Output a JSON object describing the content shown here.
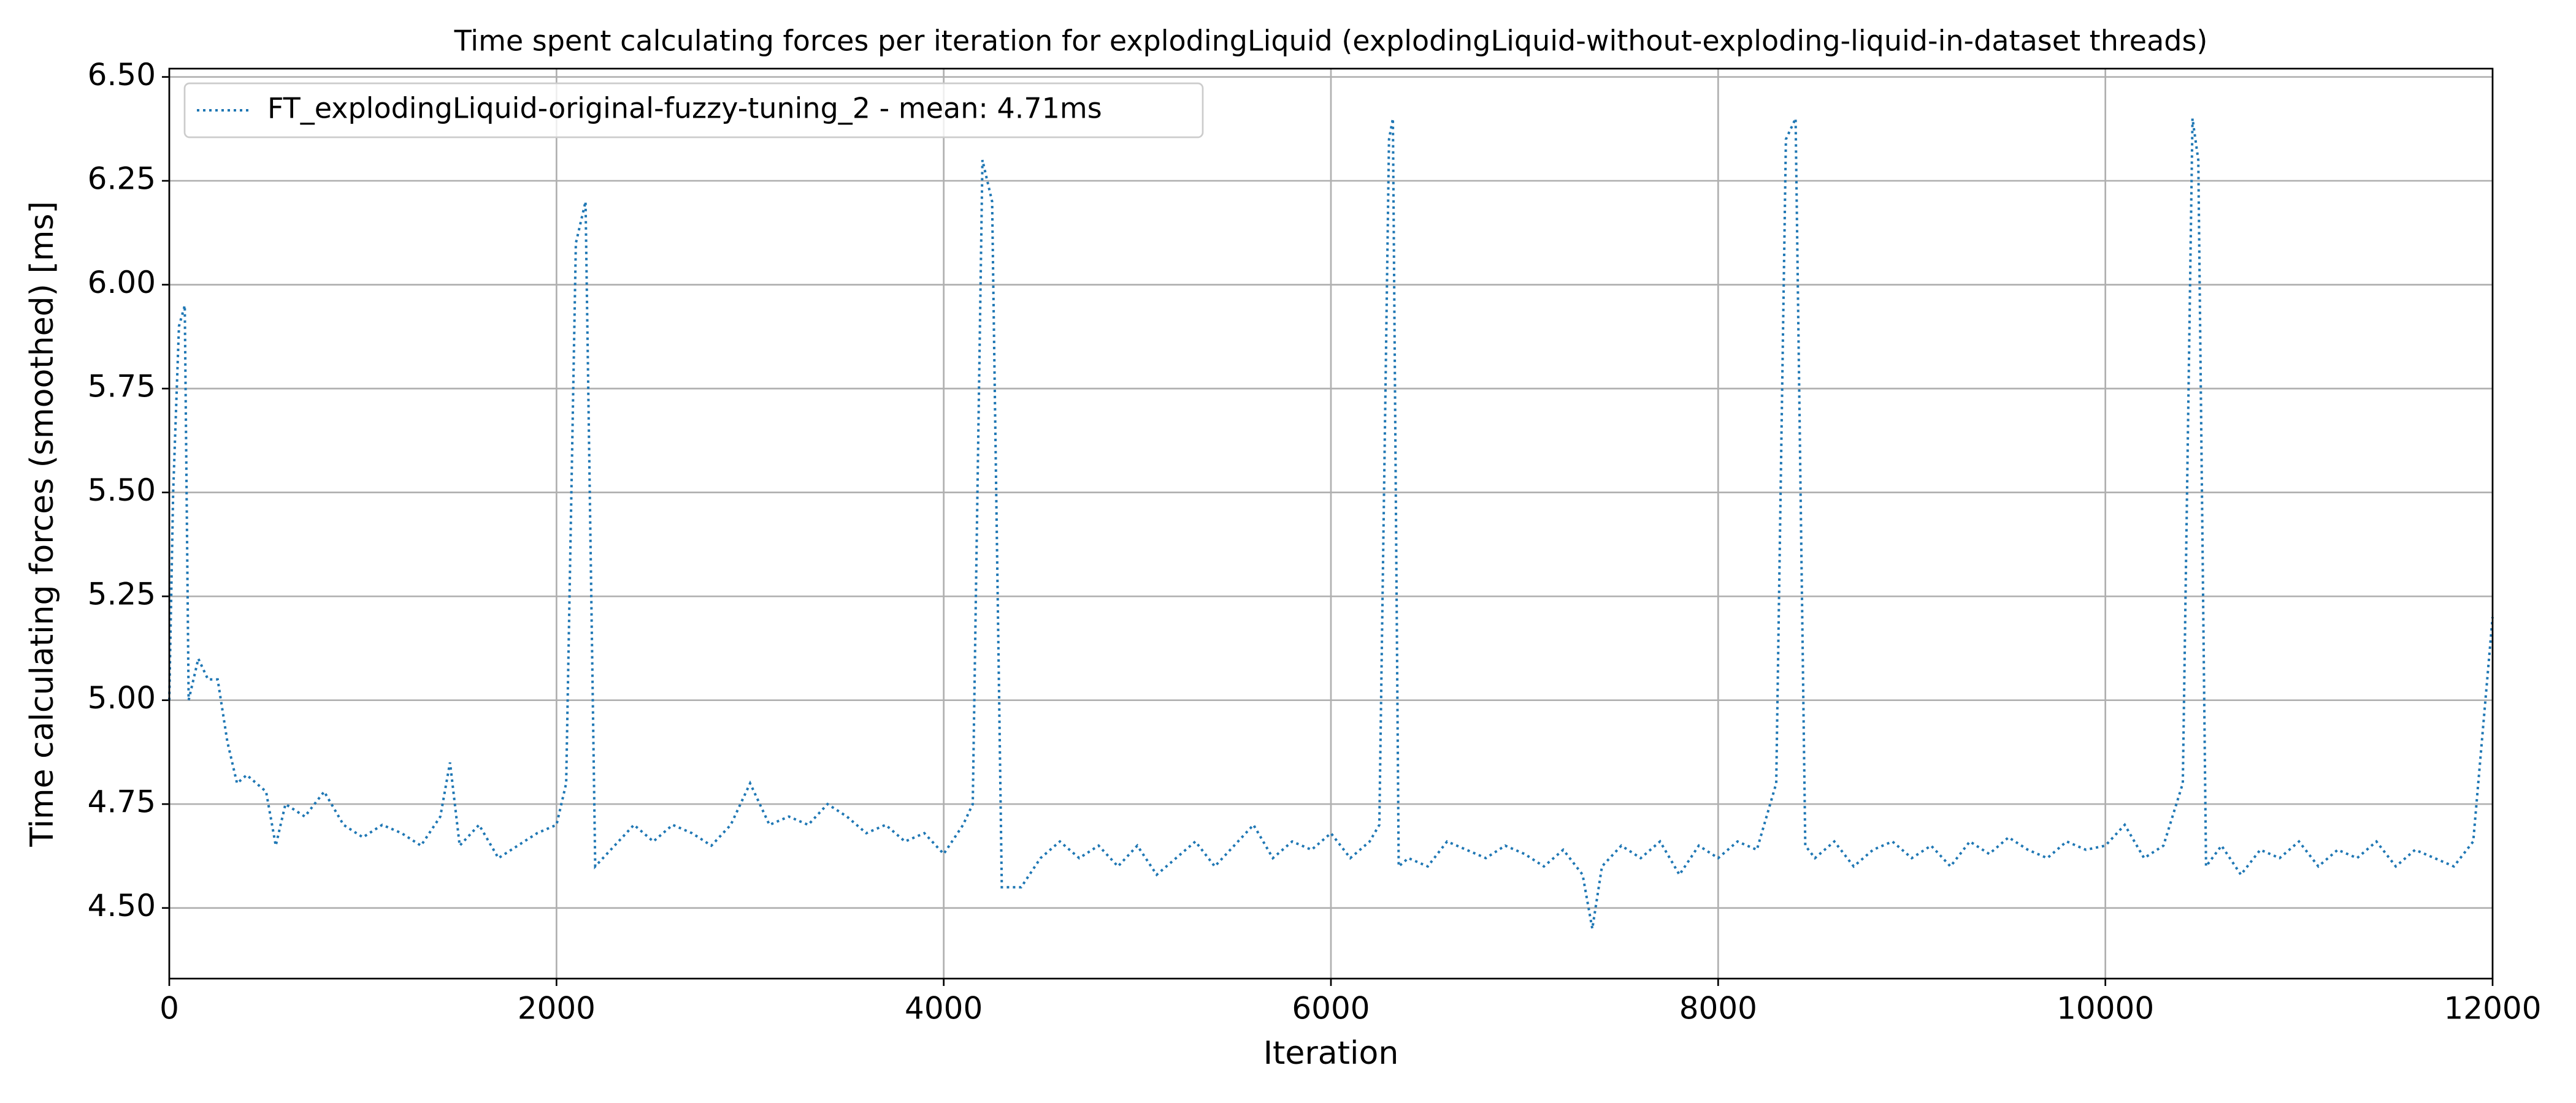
{
  "chart_data": {
    "type": "line",
    "title": "Time spent calculating forces per iteration for explodingLiquid (explodingLiquid-without-exploding-liquid-in-dataset threads)",
    "x_label": "Iteration",
    "y_label": "Time calculating forces (smoothed) [ms]",
    "xlim": [
      0,
      12000
    ],
    "ylim": [
      4.33,
      6.52
    ],
    "xticks": [
      0,
      2000,
      4000,
      6000,
      8000,
      10000,
      12000
    ],
    "yticks": [
      {
        "value": 4.5,
        "label": "4.50"
      },
      4.75,
      {
        "value": 5.0,
        "label": "5.00"
      },
      5.25,
      {
        "value": 5.5,
        "label": "5.50"
      },
      5.75,
      {
        "value": 6.0,
        "label": "6.00"
      },
      6.25,
      {
        "value": 6.5,
        "label": "6.50"
      }
    ],
    "grid": true,
    "legend_position": "upper left",
    "x": [
      0,
      20,
      50,
      80,
      100,
      150,
      200,
      250,
      300,
      350,
      400,
      450,
      500,
      550,
      600,
      700,
      800,
      900,
      1000,
      1100,
      1200,
      1300,
      1400,
      1450,
      1500,
      1600,
      1700,
      1800,
      1900,
      2000,
      2050,
      2100,
      2150,
      2200,
      2300,
      2400,
      2500,
      2600,
      2700,
      2800,
      2900,
      3000,
      3100,
      3200,
      3300,
      3400,
      3500,
      3600,
      3700,
      3800,
      3900,
      4000,
      4100,
      4150,
      4200,
      4250,
      4300,
      4400,
      4500,
      4600,
      4700,
      4800,
      4900,
      5000,
      5100,
      5200,
      5300,
      5400,
      5500,
      5600,
      5700,
      5800,
      5900,
      6000,
      6100,
      6200,
      6250,
      6300,
      6320,
      6350,
      6400,
      6500,
      6600,
      6700,
      6800,
      6900,
      7000,
      7100,
      7200,
      7300,
      7350,
      7400,
      7500,
      7600,
      7700,
      7800,
      7900,
      8000,
      8100,
      8200,
      8300,
      8350,
      8400,
      8450,
      8500,
      8600,
      8700,
      8800,
      8900,
      9000,
      9100,
      9200,
      9300,
      9400,
      9500,
      9600,
      9700,
      9800,
      9900,
      10000,
      10100,
      10200,
      10300,
      10400,
      10450,
      10480,
      10520,
      10600,
      10700,
      10800,
      10900,
      11000,
      11100,
      11200,
      11300,
      11400,
      11500,
      11600,
      11700,
      11800,
      11900,
      12000
    ],
    "series": [
      {
        "name": "FT_explodingLiquid-original-fuzzy-tuning_2 - mean: 4.71ms",
        "color": "#1f77b4",
        "values": [
          5.0,
          5.5,
          5.9,
          5.95,
          5.0,
          5.1,
          5.05,
          5.05,
          4.9,
          4.8,
          4.82,
          4.8,
          4.78,
          4.65,
          4.75,
          4.72,
          4.78,
          4.7,
          4.67,
          4.7,
          4.68,
          4.65,
          4.72,
          4.85,
          4.65,
          4.7,
          4.62,
          4.65,
          4.68,
          4.7,
          4.8,
          6.1,
          6.2,
          4.6,
          4.65,
          4.7,
          4.66,
          4.7,
          4.68,
          4.65,
          4.7,
          4.8,
          4.7,
          4.72,
          4.7,
          4.75,
          4.72,
          4.68,
          4.7,
          4.66,
          4.68,
          4.63,
          4.7,
          4.75,
          6.3,
          6.2,
          4.55,
          4.55,
          4.62,
          4.66,
          4.62,
          4.65,
          4.6,
          4.65,
          4.58,
          4.62,
          4.66,
          4.6,
          4.65,
          4.7,
          4.62,
          4.66,
          4.64,
          4.68,
          4.62,
          4.66,
          4.7,
          6.35,
          6.4,
          4.6,
          4.62,
          4.6,
          4.66,
          4.64,
          4.62,
          4.65,
          4.63,
          4.6,
          4.64,
          4.58,
          4.45,
          4.6,
          4.65,
          4.62,
          4.66,
          4.58,
          4.65,
          4.62,
          4.66,
          4.64,
          4.8,
          6.35,
          6.4,
          4.65,
          4.62,
          4.66,
          4.6,
          4.64,
          4.66,
          4.62,
          4.65,
          4.6,
          4.66,
          4.63,
          4.67,
          4.64,
          4.62,
          4.66,
          4.64,
          4.65,
          4.7,
          4.62,
          4.65,
          4.8,
          6.4,
          6.3,
          4.6,
          4.65,
          4.58,
          4.64,
          4.62,
          4.66,
          4.6,
          4.64,
          4.62,
          4.66,
          4.6,
          4.64,
          4.62,
          4.6,
          4.66,
          5.2
        ]
      }
    ]
  }
}
